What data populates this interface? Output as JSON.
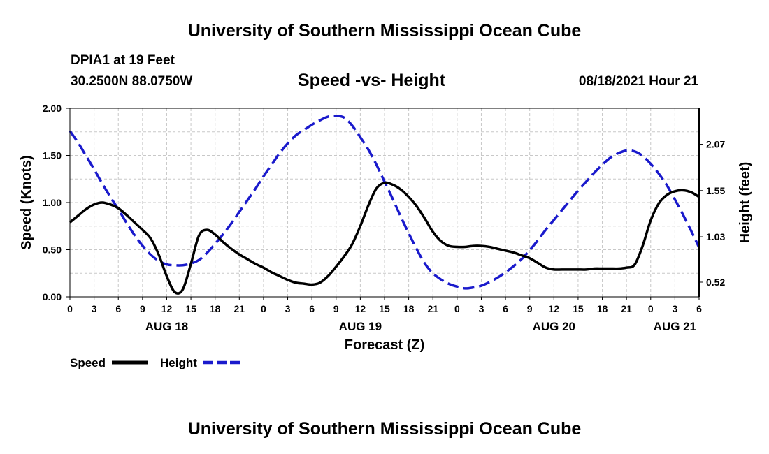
{
  "page": {
    "title_top": "University of Southern Mississippi Ocean Cube",
    "title_bottom": "University of Southern Mississippi Ocean Cube",
    "station": "DPIA1 at 19 Feet",
    "coords": "30.2500N  88.0750W",
    "subtitle": "Speed -vs- Height",
    "datetime": "08/18/2021 Hour 21"
  },
  "colors": {
    "speed": "#000000",
    "height": "#1a1acc",
    "grid": "#c8c8c8"
  },
  "chart_data": {
    "type": "line",
    "title": "Speed -vs- Height",
    "xlabel": "Forecast (Z)",
    "ylabel": "Speed (Knots)",
    "y2label": "Height (feet)",
    "x_range_hours": [
      0,
      78
    ],
    "x_ticks": {
      "hours": [
        0,
        3,
        6,
        9,
        12,
        15,
        18,
        21,
        24,
        27,
        30,
        33,
        36,
        39,
        42,
        45,
        48,
        51,
        54,
        57,
        60,
        63,
        66,
        69,
        72,
        75,
        78
      ],
      "labels": [
        "0",
        "3",
        "6",
        "9",
        "12",
        "15",
        "18",
        "21",
        "0",
        "3",
        "6",
        "9",
        "12",
        "15",
        "18",
        "21",
        "0",
        "3",
        "6",
        "9",
        "12",
        "15",
        "18",
        "21",
        "0",
        "3",
        "6"
      ]
    },
    "day_labels": [
      {
        "hour": 12,
        "label": "AUG 18"
      },
      {
        "hour": 36,
        "label": "AUG 19"
      },
      {
        "hour": 60,
        "label": "AUG 20"
      },
      {
        "hour": 75,
        "label": "AUG 21"
      }
    ],
    "ylim": [
      0,
      2
    ],
    "y_ticks": {
      "values": [
        0,
        0.5,
        1.0,
        1.5,
        2.0
      ],
      "labels": [
        "0.00",
        "0.50",
        "1.00",
        "1.50",
        "2.00"
      ]
    },
    "y2lim": [
      0.355,
      2.475
    ],
    "y2_ticks": {
      "values": [
        0.52,
        1.03,
        1.55,
        2.07
      ],
      "labels": [
        "0.52",
        "1.03",
        "1.55",
        "2.07"
      ]
    },
    "legend": {
      "position": "bottom-left",
      "entries": [
        "Speed",
        "Height"
      ]
    },
    "series": [
      {
        "name": "Speed",
        "axis": "left",
        "style": "solid",
        "x": [
          0,
          1,
          2,
          3,
          4,
          5,
          6,
          7,
          8,
          9,
          10,
          11,
          12,
          13,
          14,
          15,
          16,
          17,
          18,
          19,
          20,
          21,
          22,
          23,
          24,
          25,
          26,
          27,
          28,
          29,
          30,
          31,
          32,
          33,
          34,
          35,
          36,
          37,
          38,
          39,
          40,
          41,
          42,
          43,
          44,
          45,
          46,
          47,
          48,
          49,
          50,
          51,
          52,
          53,
          54,
          55,
          56,
          57,
          58,
          59,
          60,
          61,
          62,
          63,
          64,
          65,
          66,
          67,
          68,
          69,
          70,
          71,
          72,
          73,
          74,
          75,
          76,
          77,
          78
        ],
        "values": [
          0.79,
          0.86,
          0.93,
          0.98,
          1.0,
          0.98,
          0.94,
          0.87,
          0.79,
          0.71,
          0.62,
          0.45,
          0.22,
          0.05,
          0.08,
          0.35,
          0.65,
          0.71,
          0.66,
          0.58,
          0.51,
          0.45,
          0.4,
          0.35,
          0.31,
          0.26,
          0.22,
          0.18,
          0.15,
          0.14,
          0.13,
          0.15,
          0.22,
          0.32,
          0.43,
          0.56,
          0.75,
          0.97,
          1.15,
          1.21,
          1.19,
          1.14,
          1.06,
          0.96,
          0.83,
          0.69,
          0.59,
          0.54,
          0.53,
          0.53,
          0.54,
          0.54,
          0.53,
          0.51,
          0.49,
          0.47,
          0.44,
          0.41,
          0.36,
          0.31,
          0.29,
          0.29,
          0.29,
          0.29,
          0.29,
          0.3,
          0.3,
          0.3,
          0.3,
          0.31,
          0.34,
          0.54,
          0.81,
          0.99,
          1.08,
          1.12,
          1.13,
          1.11,
          1.06
        ]
      },
      {
        "name": "Height",
        "axis": "right",
        "style": "dashed",
        "x": [
          0,
          1,
          2,
          3,
          4,
          5,
          6,
          7,
          8,
          9,
          10,
          11,
          12,
          13,
          14,
          15,
          16,
          17,
          18,
          19,
          20,
          21,
          22,
          23,
          24,
          25,
          26,
          27,
          28,
          29,
          30,
          31,
          32,
          33,
          34,
          35,
          36,
          37,
          38,
          39,
          40,
          41,
          42,
          43,
          44,
          45,
          46,
          47,
          48,
          49,
          50,
          51,
          52,
          53,
          54,
          55,
          56,
          57,
          58,
          59,
          60,
          61,
          62,
          63,
          64,
          65,
          66,
          67,
          68,
          69,
          70,
          71,
          72,
          73,
          74,
          75,
          76,
          77,
          78
        ],
        "values": [
          2.22,
          2.09,
          1.94,
          1.79,
          1.63,
          1.48,
          1.34,
          1.19,
          1.05,
          0.93,
          0.83,
          0.76,
          0.72,
          0.71,
          0.71,
          0.73,
          0.77,
          0.85,
          0.95,
          1.06,
          1.18,
          1.31,
          1.44,
          1.57,
          1.71,
          1.84,
          1.97,
          2.08,
          2.17,
          2.23,
          2.29,
          2.34,
          2.38,
          2.39,
          2.37,
          2.28,
          2.15,
          2.01,
          1.84,
          1.65,
          1.46,
          1.26,
          1.07,
          0.89,
          0.73,
          0.62,
          0.55,
          0.5,
          0.47,
          0.45,
          0.46,
          0.48,
          0.52,
          0.57,
          0.63,
          0.7,
          0.78,
          0.88,
          0.99,
          1.11,
          1.22,
          1.33,
          1.44,
          1.55,
          1.65,
          1.75,
          1.84,
          1.92,
          1.97,
          2.0,
          1.99,
          1.94,
          1.85,
          1.74,
          1.61,
          1.45,
          1.28,
          1.1,
          0.91
        ]
      }
    ]
  }
}
